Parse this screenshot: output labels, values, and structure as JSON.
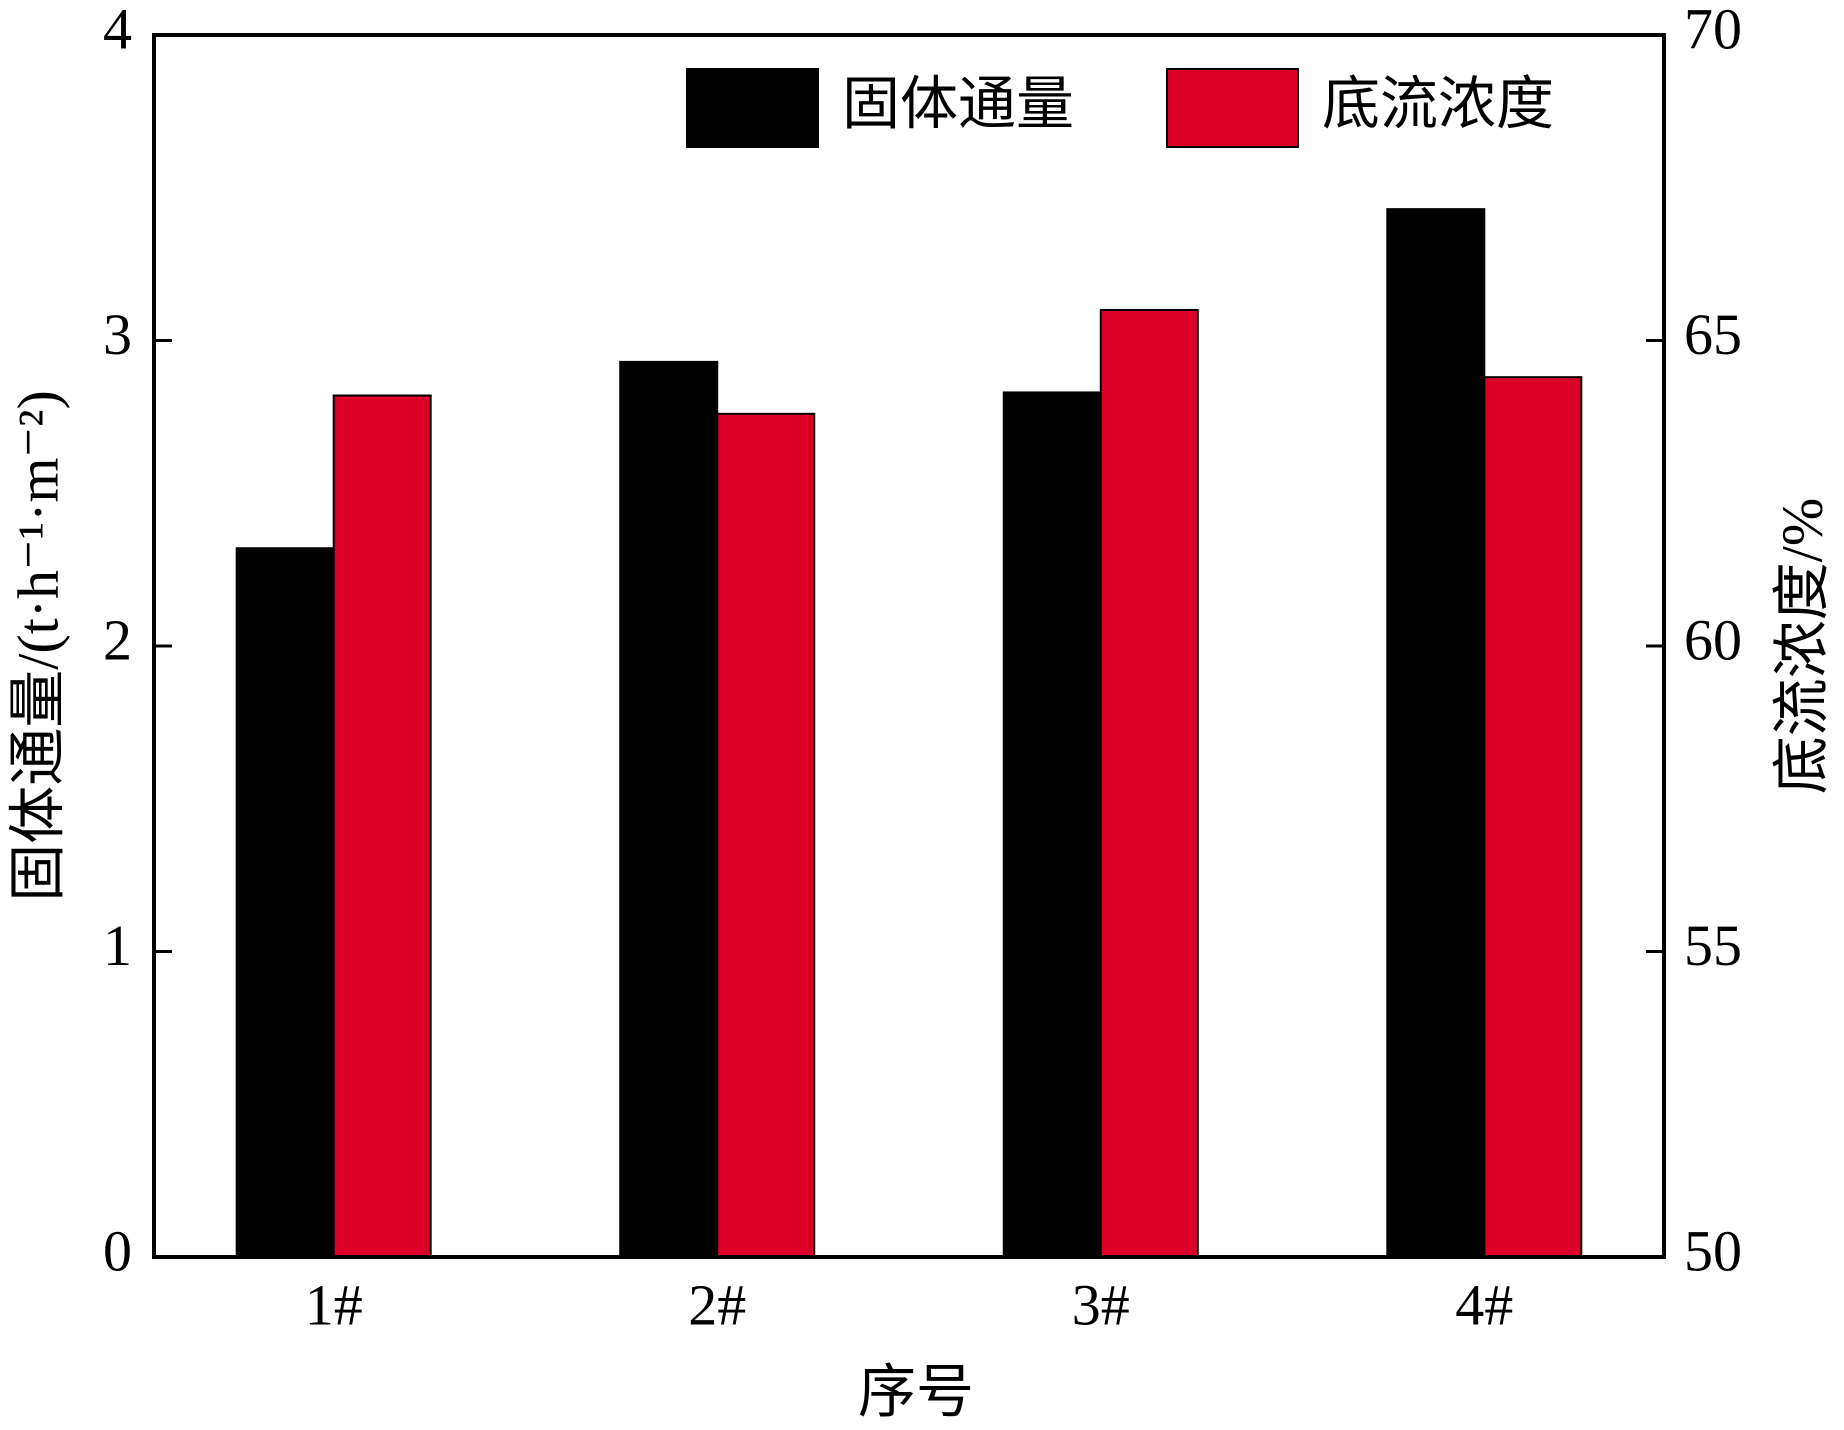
{
  "chart_data": {
    "type": "bar",
    "x_label": "序号",
    "y_label": "固体通量/(t·h⁻¹·m⁻²)",
    "y2_label": "底流浓度/%",
    "categories": [
      "1#",
      "2#",
      "3#",
      "4#"
    ],
    "series": [
      {
        "name": "固体通量",
        "color": "#000000",
        "values": [
          2.32,
          2.93,
          2.83,
          3.43
        ]
      },
      {
        "name": "底流浓度",
        "color": "#dc0028",
        "axis": "y2",
        "values": [
          64.1,
          63.8,
          65.5,
          64.4
        ]
      }
    ],
    "ylim": [
      0,
      4
    ],
    "yticks": [
      0,
      1,
      2,
      3,
      4
    ],
    "y2lim": [
      50,
      70
    ],
    "y2ticks": [
      50,
      55,
      60,
      65,
      70
    ],
    "legend": "upper right"
  }
}
